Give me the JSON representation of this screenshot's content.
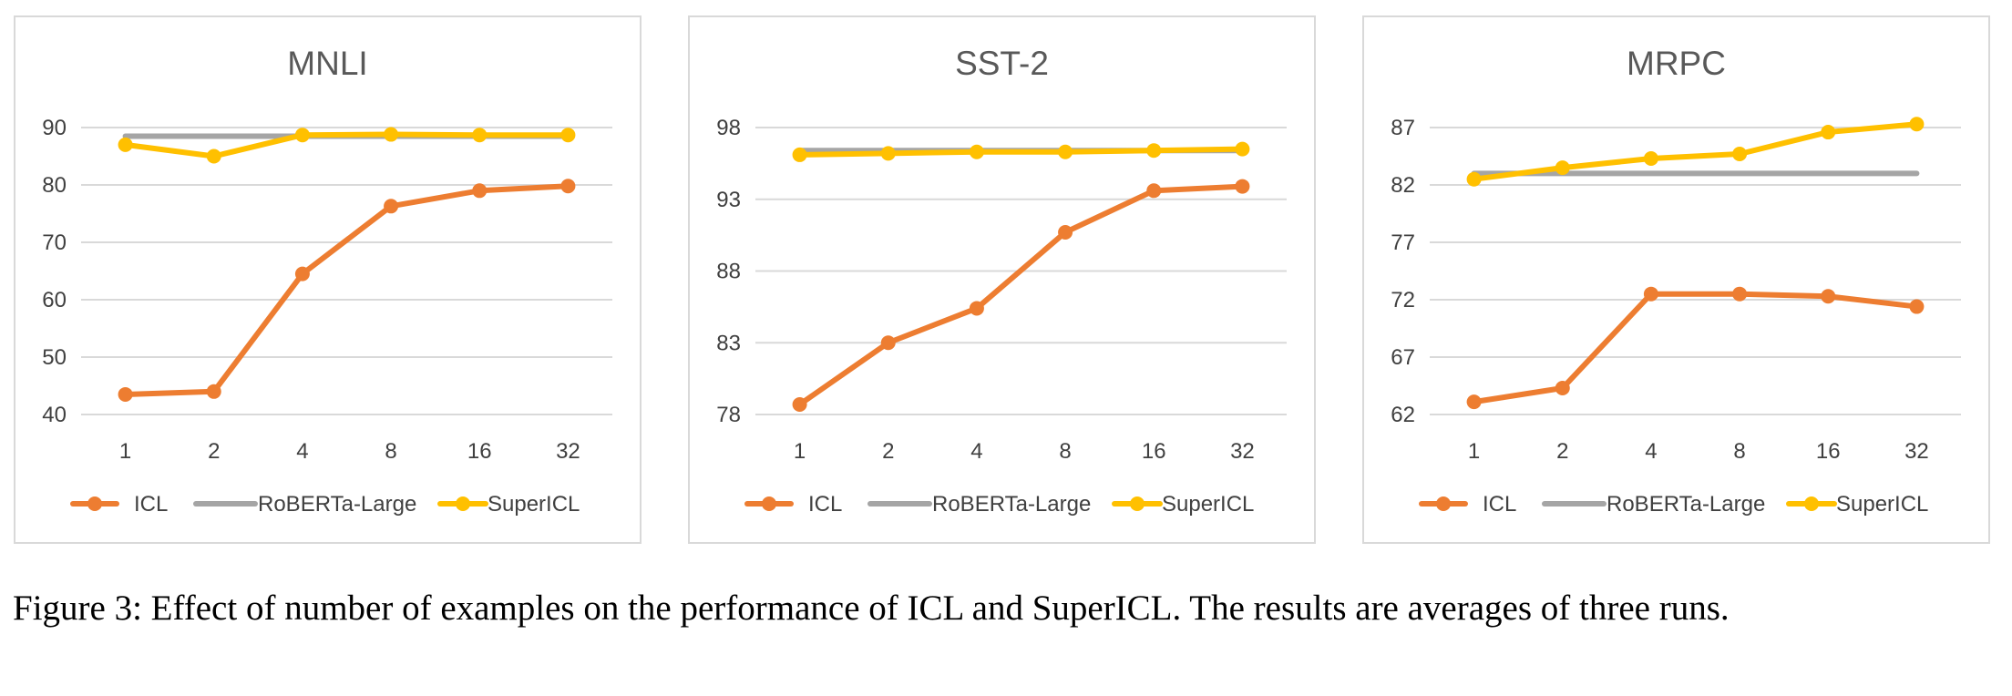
{
  "chart_data": [
    {
      "type": "line",
      "title": "MNLI",
      "categories": [
        "1",
        "2",
        "4",
        "8",
        "16",
        "32"
      ],
      "yticks": [
        "40",
        "50",
        "60",
        "70",
        "80",
        "90"
      ],
      "ylim": [
        40,
        90
      ],
      "grid": true,
      "legend_position": "bottom",
      "series": [
        {
          "name": "ICL",
          "color": "#ED7D31",
          "markers": true,
          "values": [
            43.5,
            44.0,
            64.5,
            76.3,
            79.0,
            79.8
          ]
        },
        {
          "name": "RoBERTa-Large",
          "color": "#A5A5A5",
          "markers": false,
          "values": [
            88.5,
            88.5,
            88.5,
            88.5,
            88.5,
            88.5
          ]
        },
        {
          "name": "SuperICL",
          "color": "#FFC000",
          "markers": true,
          "values": [
            87.0,
            85.0,
            88.7,
            88.8,
            88.7,
            88.7
          ]
        }
      ]
    },
    {
      "type": "line",
      "title": "SST-2",
      "categories": [
        "1",
        "2",
        "4",
        "8",
        "16",
        "32"
      ],
      "yticks": [
        "78",
        "83",
        "88",
        "93",
        "98"
      ],
      "ylim": [
        78,
        98
      ],
      "grid": true,
      "legend_position": "bottom",
      "series": [
        {
          "name": "ICL",
          "color": "#ED7D31",
          "markers": true,
          "values": [
            78.7,
            83.0,
            85.4,
            90.7,
            93.6,
            93.9
          ]
        },
        {
          "name": "RoBERTa-Large",
          "color": "#A5A5A5",
          "markers": false,
          "values": [
            96.4,
            96.4,
            96.4,
            96.4,
            96.4,
            96.4
          ]
        },
        {
          "name": "SuperICL",
          "color": "#FFC000",
          "markers": true,
          "values": [
            96.1,
            96.2,
            96.3,
            96.3,
            96.4,
            96.5
          ]
        }
      ]
    },
    {
      "type": "line",
      "title": "MRPC",
      "categories": [
        "1",
        "2",
        "4",
        "8",
        "16",
        "32"
      ],
      "yticks": [
        "62",
        "67",
        "72",
        "77",
        "82",
        "87"
      ],
      "ylim": [
        62,
        87
      ],
      "grid": true,
      "legend_position": "bottom",
      "series": [
        {
          "name": "ICL",
          "color": "#ED7D31",
          "markers": true,
          "values": [
            63.1,
            64.3,
            72.5,
            72.5,
            72.3,
            71.4
          ]
        },
        {
          "name": "RoBERTa-Large",
          "color": "#A5A5A5",
          "markers": false,
          "values": [
            83.0,
            83.0,
            83.0,
            83.0,
            83.0,
            83.0
          ]
        },
        {
          "name": "SuperICL",
          "color": "#FFC000",
          "markers": true,
          "values": [
            82.5,
            83.5,
            84.3,
            84.7,
            86.6,
            87.3
          ]
        }
      ]
    }
  ],
  "caption": "Figure 3:  Effect of number of examples on the performance of ICL and SuperICL. The results are averages of three runs."
}
